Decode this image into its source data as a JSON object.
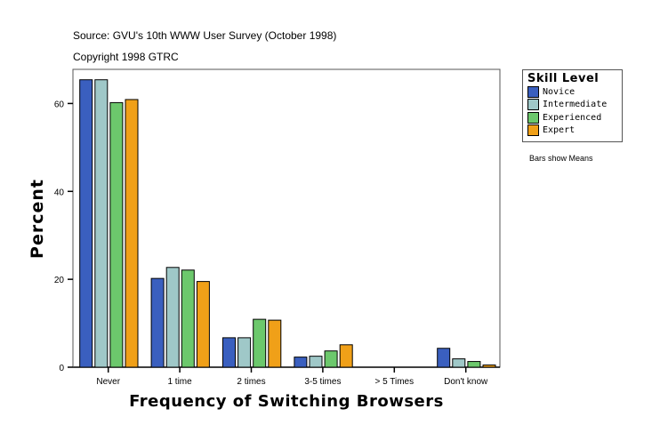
{
  "header": {
    "source": "Source: GVU's 10th WWW User Survey (October 1998)",
    "copyright": "Copyright 1998 GTRC"
  },
  "note": "Bars show Means",
  "chart_data": {
    "type": "bar",
    "title": "",
    "xlabel": "Frequency of Switching Browsers",
    "ylabel": "Percent",
    "ylim": [
      0,
      67
    ],
    "yticks": [
      0,
      20,
      40,
      60
    ],
    "grid": false,
    "legend_title": "Skill Level",
    "legend_position": "right",
    "categories": [
      "Never",
      "1 time",
      "2 times",
      "3-5 times",
      "> 5 Times",
      "Don't know"
    ],
    "series": [
      {
        "name": "Novice",
        "color": "#3a5fbf",
        "values": [
          65.4,
          20.2,
          6.7,
          2.3,
          0,
          4.3
        ]
      },
      {
        "name": "Intermediate",
        "color": "#9fc8c8",
        "values": [
          65.4,
          22.7,
          6.7,
          2.5,
          0,
          1.9
        ]
      },
      {
        "name": "Experienced",
        "color": "#6cc86c",
        "values": [
          60.2,
          22.1,
          10.9,
          3.7,
          0,
          1.3
        ]
      },
      {
        "name": "Expert",
        "color": "#f0a018",
        "values": [
          60.9,
          19.5,
          10.7,
          5.1,
          0,
          0.5
        ]
      }
    ]
  }
}
